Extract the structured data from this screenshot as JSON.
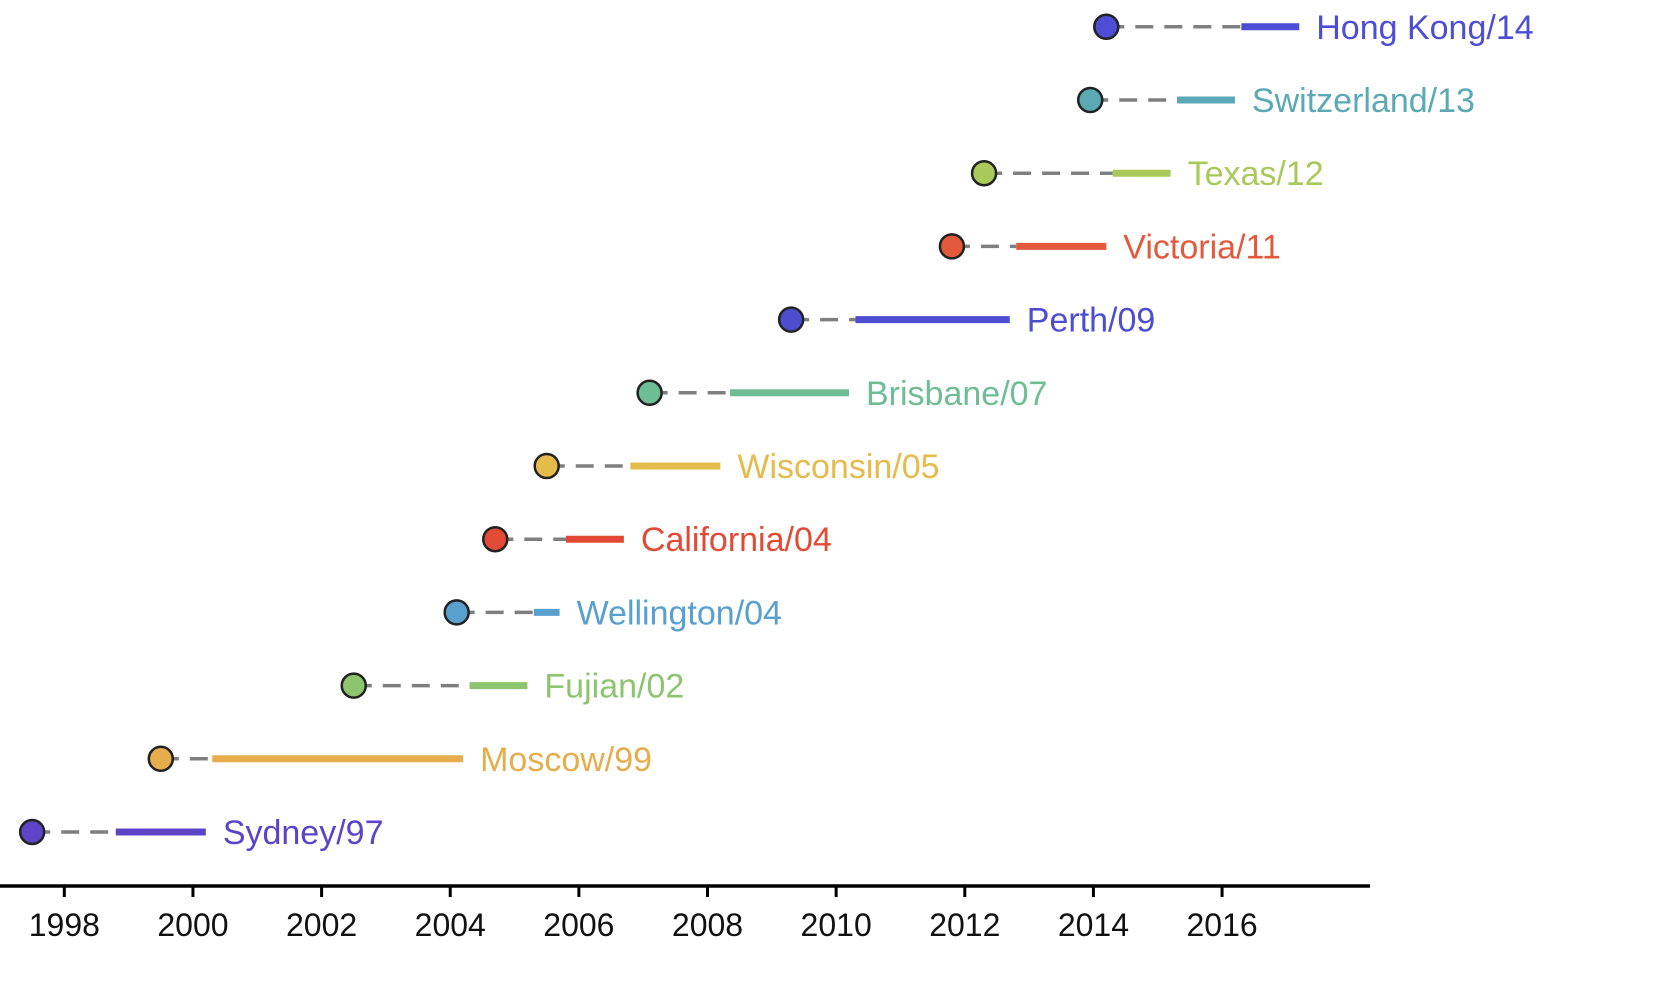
{
  "chart_data": {
    "type": "timeline",
    "title": "",
    "xlabel": "",
    "ylabel": "",
    "xlim": [
      1997.0,
      2018.3
    ],
    "x_ticks": [
      "1998",
      "2000",
      "2002",
      "2004",
      "2006",
      "2008",
      "2010",
      "2012",
      "2014",
      "2016"
    ],
    "grid": false,
    "legend": "none",
    "connector_color": "#7f7f7f",
    "series": [
      {
        "name": "Sydney/97",
        "point": 1997.5,
        "dash_end": 1998.8,
        "bar": [
          1998.8,
          2000.2
        ],
        "color": "#5b44c8"
      },
      {
        "name": "Moscow/99",
        "point": 1999.5,
        "dash_end": 2000.3,
        "bar": [
          2000.3,
          2004.2
        ],
        "color": "#e6ad4c"
      },
      {
        "name": "Fujian/02",
        "point": 2002.5,
        "dash_end": 2004.3,
        "bar": [
          2004.3,
          2005.2
        ],
        "color": "#8cc56e"
      },
      {
        "name": "Wellington/04",
        "point": 2004.1,
        "dash_end": 2005.3,
        "bar": [
          2005.3,
          2005.7
        ],
        "color": "#5aa0cf"
      },
      {
        "name": "California/04",
        "point": 2004.7,
        "dash_end": 2005.8,
        "bar": [
          2005.8,
          2006.7
        ],
        "color": "#e24a36"
      },
      {
        "name": "Wisconsin/05",
        "point": 2005.5,
        "dash_end": 2006.8,
        "bar": [
          2006.8,
          2008.2
        ],
        "color": "#e5bb4b"
      },
      {
        "name": "Brisbane/07",
        "point": 2007.1,
        "dash_end": 2008.35,
        "bar": [
          2008.35,
          2010.2
        ],
        "color": "#6fbd95"
      },
      {
        "name": "Perth/09",
        "point": 2009.3,
        "dash_end": 2010.3,
        "bar": [
          2010.3,
          2012.7
        ],
        "color": "#4d4dcf"
      },
      {
        "name": "Victoria/11",
        "point": 2011.8,
        "dash_end": 2012.8,
        "bar": [
          2012.8,
          2014.2
        ],
        "color": "#e3593b"
      },
      {
        "name": "Texas/12",
        "point": 2012.3,
        "dash_end": 2014.3,
        "bar": [
          2014.3,
          2015.2
        ],
        "color": "#a9c95b"
      },
      {
        "name": "Switzerland/13",
        "point": 2013.95,
        "dash_end": 2015.3,
        "bar": [
          2015.3,
          2016.2
        ],
        "color": "#5aa9b5"
      },
      {
        "name": "Hong Kong/14",
        "point": 2014.2,
        "dash_end": 2016.3,
        "bar": [
          2016.3,
          2017.2
        ],
        "color": "#4d4dd6"
      }
    ]
  }
}
